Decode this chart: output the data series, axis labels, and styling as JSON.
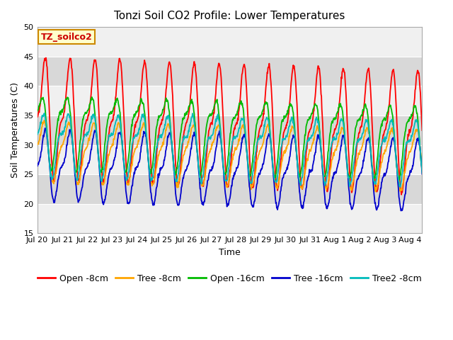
{
  "title": "Tonzi Soil CO2 Profile: Lower Temperatures",
  "xlabel": "Time",
  "ylabel": "Soil Temperatures (C)",
  "ylim": [
    15,
    50
  ],
  "yticks": [
    15,
    20,
    25,
    30,
    35,
    40,
    45,
    50
  ],
  "series_names": [
    "Open -8cm",
    "Tree -8cm",
    "Open -16cm",
    "Tree -16cm",
    "Tree2 -8cm"
  ],
  "series_colors": [
    "#ff0000",
    "#ffa500",
    "#00bb00",
    "#0000cc",
    "#00bbbb"
  ],
  "series_lw": [
    1.3,
    1.3,
    1.3,
    1.3,
    1.3
  ],
  "series_params": [
    {
      "mean": 34.5,
      "amp1": 8.5,
      "amp2": 3.5,
      "phase1": 0.0,
      "phase2": 0.5,
      "trend": -0.15
    },
    {
      "mean": 29.0,
      "amp1": 4.5,
      "amp2": 1.5,
      "phase1": 0.05,
      "phase2": 0.55,
      "trend": -0.08
    },
    {
      "mean": 33.0,
      "amp1": 5.5,
      "amp2": 2.0,
      "phase1": 0.15,
      "phase2": 0.65,
      "trend": -0.1
    },
    {
      "mean": 26.5,
      "amp1": 5.0,
      "amp2": 2.0,
      "phase1": 0.0,
      "phase2": 0.5,
      "trend": -0.1
    },
    {
      "mean": 30.5,
      "amp1": 4.5,
      "amp2": 2.0,
      "phase1": 0.1,
      "phase2": 0.6,
      "trend": -0.08
    }
  ],
  "n_days": 15.5,
  "n_points": 930,
  "xtick_labels": [
    "Jul 20",
    "Jul 21",
    "Jul 22",
    "Jul 23",
    "Jul 24",
    "Jul 25",
    "Jul 26",
    "Jul 27",
    "Jul 28",
    "Jul 29",
    "Jul 30",
    "Jul 31",
    "Aug 1",
    "Aug 2",
    "Aug 3",
    "Aug 4"
  ],
  "annotation_text": "TZ_soilco2",
  "annotation_color": "#cc0000",
  "annotation_bg": "#ffffcc",
  "annotation_border": "#cc8800",
  "plot_bg_light": "#f0f0f0",
  "plot_bg_dark": "#d8d8d8",
  "fig_bg": "#ffffff",
  "legend_fontsize": 9,
  "title_fontsize": 11,
  "axis_fontsize": 9,
  "tick_fontsize": 8
}
